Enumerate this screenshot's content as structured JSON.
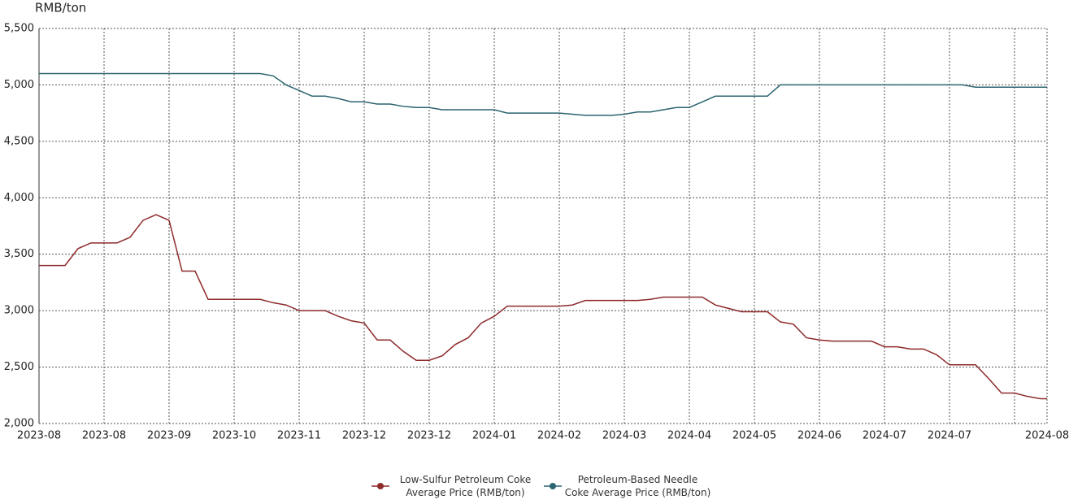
{
  "chart_data": {
    "type": "line",
    "y_axis_label": "RMB/ton",
    "x": [
      0,
      2,
      4,
      6,
      8,
      10,
      12,
      14,
      16,
      18,
      20,
      22,
      24,
      26,
      28,
      30,
      32,
      34,
      36,
      38,
      40,
      42,
      44,
      46,
      48,
      50,
      52,
      54,
      56,
      58,
      60,
      62,
      64,
      66,
      68,
      70,
      72,
      74,
      76,
      78,
      80,
      82,
      84,
      86,
      88,
      90,
      92,
      94,
      96,
      98,
      100,
      102,
      104,
      106,
      108,
      110,
      112,
      114,
      116,
      118,
      120,
      122,
      124,
      126,
      128,
      130,
      132,
      134,
      136,
      138,
      140,
      142,
      144,
      146,
      148,
      150,
      152,
      154,
      155
    ],
    "xlim": [
      0,
      155
    ],
    "xticks": [
      {
        "value": 0,
        "label": "2023-08"
      },
      {
        "value": 10,
        "label": "2023-08"
      },
      {
        "value": 20,
        "label": "2023-09"
      },
      {
        "value": 30,
        "label": "2023-10"
      },
      {
        "value": 40,
        "label": "2023-11"
      },
      {
        "value": 50,
        "label": "2023-12"
      },
      {
        "value": 60,
        "label": "2023-12"
      },
      {
        "value": 70,
        "label": "2024-01"
      },
      {
        "value": 80,
        "label": "2024-02"
      },
      {
        "value": 90,
        "label": "2024-03"
      },
      {
        "value": 100,
        "label": "2024-04"
      },
      {
        "value": 110,
        "label": "2024-05"
      },
      {
        "value": 120,
        "label": "2024-06"
      },
      {
        "value": 130,
        "label": "2024-07"
      },
      {
        "value": 140,
        "label": "2024-07"
      },
      {
        "value": 150,
        "label": null
      },
      {
        "value": 155,
        "label": "2024-08"
      }
    ],
    "ylim": [
      2000,
      5500
    ],
    "yticks": [
      {
        "value": 2000,
        "label": "2,000"
      },
      {
        "value": 2500,
        "label": "2,500"
      },
      {
        "value": 3000,
        "label": "3,000"
      },
      {
        "value": 3500,
        "label": "3,500"
      },
      {
        "value": 4000,
        "label": "4,000"
      },
      {
        "value": 4500,
        "label": "4,500"
      },
      {
        "value": 5000,
        "label": "5,000"
      },
      {
        "value": 5500,
        "label": "5,500"
      }
    ],
    "grid": true,
    "legend": "bottom",
    "series": [
      {
        "name": "Low-Sulfur Petroleum Coke Average Price (RMB/ton)",
        "color": "#8e2a2a",
        "values": [
          3400,
          3400,
          3400,
          3550,
          3600,
          3600,
          3600,
          3650,
          3800,
          3850,
          3800,
          3350,
          3350,
          3100,
          3100,
          3100,
          3100,
          3100,
          3070,
          3050,
          3000,
          3000,
          3000,
          2950,
          2910,
          2890,
          2740,
          2740,
          2640,
          2560,
          2560,
          2600,
          2700,
          2760,
          2890,
          2950,
          3040,
          3040,
          3040,
          3040,
          3040,
          3050,
          3090,
          3090,
          3090,
          3090,
          3090,
          3100,
          3120,
          3120,
          3120,
          3120,
          3050,
          3020,
          2990,
          2990,
          2990,
          2900,
          2880,
          2760,
          2740,
          2730,
          2730,
          2730,
          2730,
          2680,
          2680,
          2660,
          2660,
          2610,
          2520,
          2520,
          2520,
          2400,
          2270,
          2270,
          2240,
          2220,
          2220
        ]
      },
      {
        "name": "Petroleum-Based Needle Coke Average Price (RMB/ton)",
        "color": "#2b6470",
        "values": [
          5100,
          5100,
          5100,
          5100,
          5100,
          5100,
          5100,
          5100,
          5100,
          5100,
          5100,
          5100,
          5100,
          5100,
          5100,
          5100,
          5100,
          5100,
          5080,
          5000,
          4950,
          4900,
          4900,
          4880,
          4850,
          4850,
          4830,
          4830,
          4810,
          4800,
          4800,
          4780,
          4780,
          4780,
          4780,
          4780,
          4750,
          4750,
          4750,
          4750,
          4750,
          4740,
          4730,
          4730,
          4730,
          4740,
          4760,
          4760,
          4780,
          4800,
          4800,
          4850,
          4900,
          4900,
          4900,
          4900,
          4900,
          5000,
          5000,
          5000,
          5000,
          5000,
          5000,
          5000,
          5000,
          5000,
          5000,
          5000,
          5000,
          5000,
          5000,
          5000,
          4980,
          4980,
          4980,
          4980,
          4980,
          4980,
          4980
        ]
      }
    ]
  }
}
